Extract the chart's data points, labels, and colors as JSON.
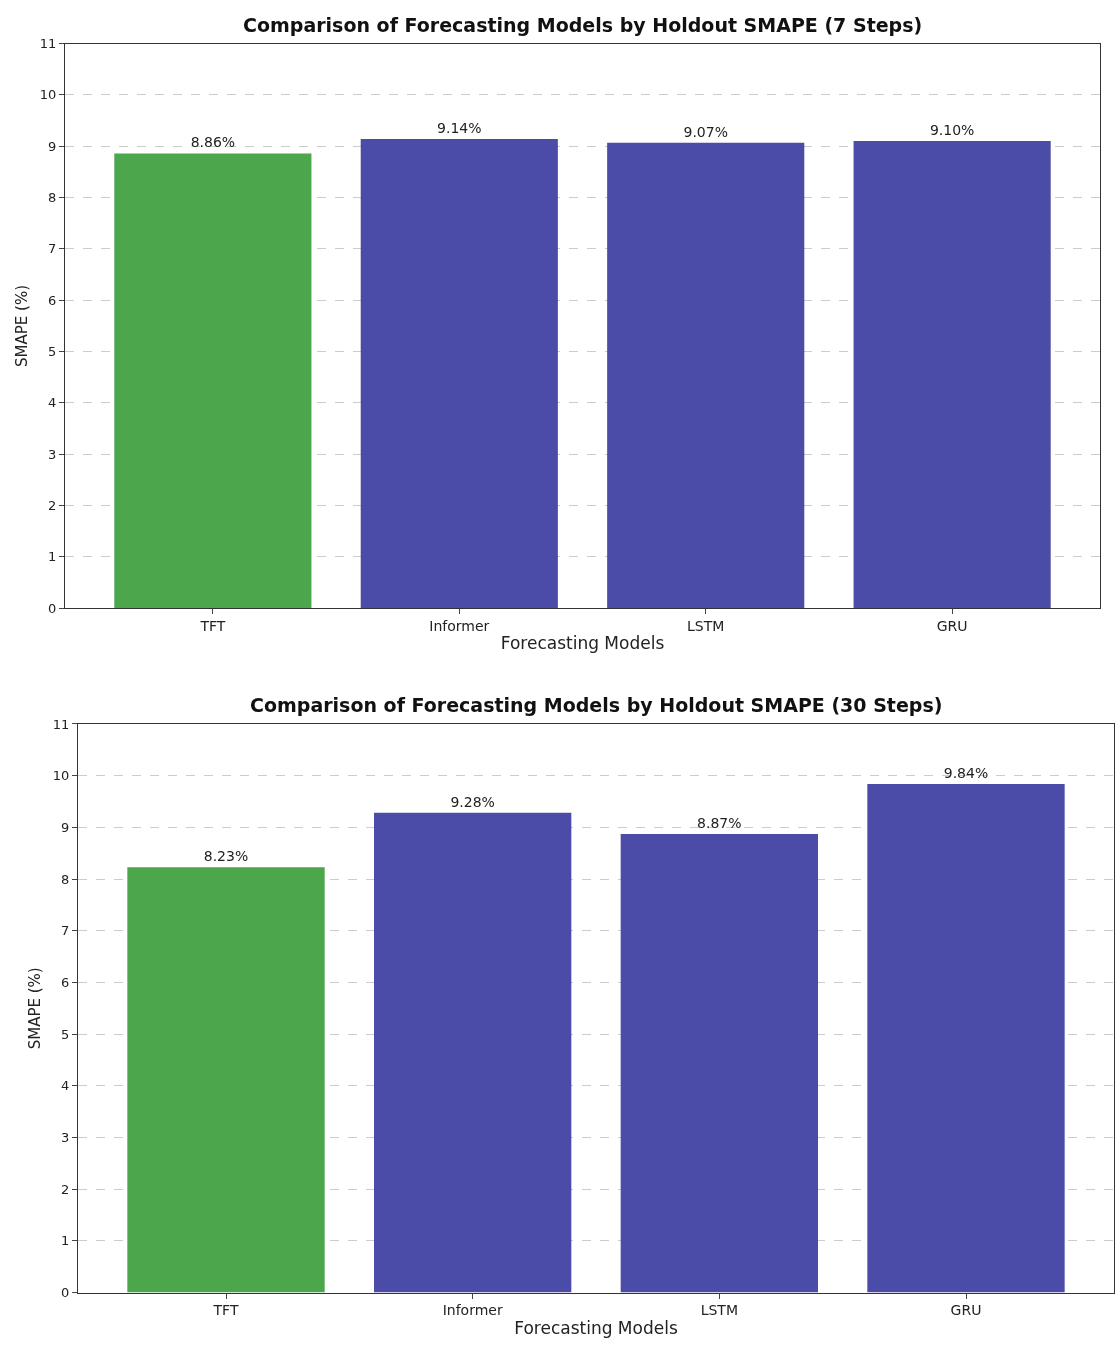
{
  "chart_data": [
    {
      "type": "bar",
      "title": "Comparison of Forecasting Models by Holdout SMAPE (7 Steps)",
      "xlabel": "Forecasting Models",
      "ylabel": "SMAPE (%)",
      "categories": [
        "TFT",
        "Informer",
        "LSTM",
        "GRU"
      ],
      "values": [
        8.86,
        9.14,
        9.07,
        9.1
      ],
      "colors": [
        "#4ca64c",
        "#4b4ba8",
        "#4b4ba8",
        "#4b4ba8"
      ],
      "value_labels": [
        "8.86%",
        "9.14%",
        "9.07%",
        "9.10%"
      ],
      "ylim": [
        0,
        11
      ],
      "yticks": [
        0,
        1,
        2,
        3,
        4,
        5,
        6,
        7,
        8,
        9,
        10,
        11
      ],
      "grid": "y"
    },
    {
      "type": "bar",
      "title": "Comparison of Forecasting Models by Holdout SMAPE (30 Steps)",
      "xlabel": "Forecasting Models",
      "ylabel": "SMAPE (%)",
      "categories": [
        "TFT",
        "Informer",
        "LSTM",
        "GRU"
      ],
      "values": [
        8.23,
        9.28,
        8.87,
        9.84
      ],
      "colors": [
        "#4ca64c",
        "#4b4ba8",
        "#4b4ba8",
        "#4b4ba8"
      ],
      "value_labels": [
        "8.23%",
        "9.28%",
        "8.87%",
        "9.84%"
      ],
      "ylim": [
        0,
        11
      ],
      "yticks": [
        0,
        1,
        2,
        3,
        4,
        5,
        6,
        7,
        8,
        9,
        10,
        11
      ],
      "grid": "y"
    }
  ]
}
